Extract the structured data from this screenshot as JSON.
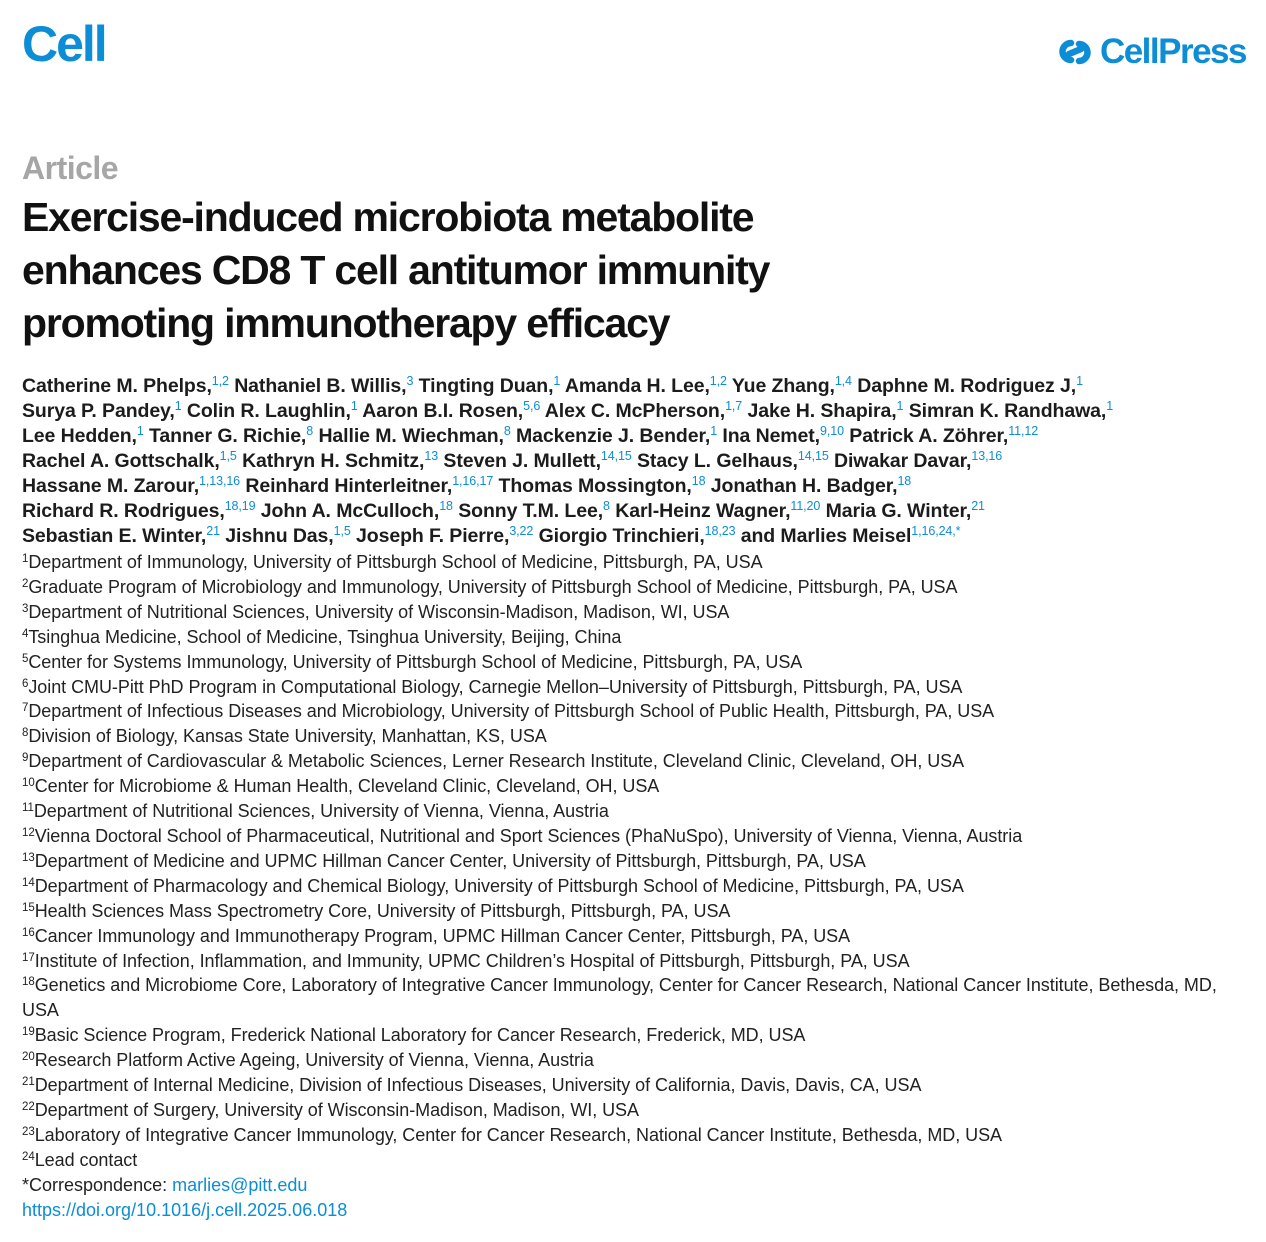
{
  "header": {
    "journal": "Cell",
    "publisher": "CellPress",
    "brand_color": "#0c8dd5"
  },
  "article_type": "Article",
  "title_lines": [
    "Exercise-induced microbiota metabolite",
    "enhances CD8 T cell antitumor immunity",
    "promoting immunotherapy efficacy"
  ],
  "author_lines": [
    [
      {
        "name": "Catherine M. Phelps,",
        "sup": "1,2"
      },
      {
        "name": "Nathaniel B. Willis,",
        "sup": "3"
      },
      {
        "name": "Tingting Duan,",
        "sup": "1"
      },
      {
        "name": "Amanda H. Lee,",
        "sup": "1,2"
      },
      {
        "name": "Yue Zhang,",
        "sup": "1,4"
      },
      {
        "name": "Daphne M. Rodriguez J,",
        "sup": "1"
      }
    ],
    [
      {
        "name": "Surya P. Pandey,",
        "sup": "1"
      },
      {
        "name": "Colin R. Laughlin,",
        "sup": "1"
      },
      {
        "name": "Aaron B.I. Rosen,",
        "sup": "5,6"
      },
      {
        "name": "Alex C. McPherson,",
        "sup": "1,7"
      },
      {
        "name": "Jake H. Shapira,",
        "sup": "1"
      },
      {
        "name": "Simran K. Randhawa,",
        "sup": "1"
      }
    ],
    [
      {
        "name": "Lee Hedden,",
        "sup": "1"
      },
      {
        "name": "Tanner G. Richie,",
        "sup": "8"
      },
      {
        "name": "Hallie M. Wiechman,",
        "sup": "8"
      },
      {
        "name": "Mackenzie J. Bender,",
        "sup": "1"
      },
      {
        "name": "Ina Nemet,",
        "sup": "9,10"
      },
      {
        "name": "Patrick A. Zöhrer,",
        "sup": "11,12"
      }
    ],
    [
      {
        "name": "Rachel A. Gottschalk,",
        "sup": "1,5"
      },
      {
        "name": "Kathryn H. Schmitz,",
        "sup": "13"
      },
      {
        "name": "Steven J. Mullett,",
        "sup": "14,15"
      },
      {
        "name": "Stacy L. Gelhaus,",
        "sup": "14,15"
      },
      {
        "name": "Diwakar Davar,",
        "sup": "13,16"
      }
    ],
    [
      {
        "name": "Hassane M. Zarour,",
        "sup": "1,13,16"
      },
      {
        "name": "Reinhard Hinterleitner,",
        "sup": "1,16,17"
      },
      {
        "name": "Thomas Mossington,",
        "sup": "18"
      },
      {
        "name": "Jonathan H. Badger,",
        "sup": "18"
      }
    ],
    [
      {
        "name": "Richard R. Rodrigues,",
        "sup": "18,19"
      },
      {
        "name": "John A. McCulloch,",
        "sup": "18"
      },
      {
        "name": "Sonny T.M. Lee,",
        "sup": "8"
      },
      {
        "name": "Karl-Heinz Wagner,",
        "sup": "11,20"
      },
      {
        "name": "Maria G. Winter,",
        "sup": "21"
      }
    ],
    [
      {
        "name": "Sebastian E. Winter,",
        "sup": "21"
      },
      {
        "name": "Jishnu Das,",
        "sup": "1,5"
      },
      {
        "name": "Joseph F. Pierre,",
        "sup": "3,22"
      },
      {
        "name": "Giorgio Trinchieri,",
        "sup": "18,23"
      },
      {
        "name": "and Marlies Meisel",
        "sup": "1,16,24,*"
      }
    ]
  ],
  "affiliations": [
    {
      "num": "1",
      "text": "Department of Immunology, University of Pittsburgh School of Medicine, Pittsburgh, PA, USA"
    },
    {
      "num": "2",
      "text": "Graduate Program of Microbiology and Immunology, University of Pittsburgh School of Medicine, Pittsburgh, PA, USA"
    },
    {
      "num": "3",
      "text": "Department of Nutritional Sciences, University of Wisconsin-Madison, Madison, WI, USA"
    },
    {
      "num": "4",
      "text": "Tsinghua Medicine, School of Medicine, Tsinghua University, Beijing, China"
    },
    {
      "num": "5",
      "text": "Center for Systems Immunology, University of Pittsburgh School of Medicine, Pittsburgh, PA, USA"
    },
    {
      "num": "6",
      "text": "Joint CMU-Pitt PhD Program in Computational Biology, Carnegie Mellon–University of Pittsburgh, Pittsburgh, PA, USA"
    },
    {
      "num": "7",
      "text": "Department of Infectious Diseases and Microbiology, University of Pittsburgh School of Public Health, Pittsburgh, PA, USA"
    },
    {
      "num": "8",
      "text": "Division of Biology, Kansas State University, Manhattan, KS, USA"
    },
    {
      "num": "9",
      "text": "Department of Cardiovascular & Metabolic Sciences, Lerner Research Institute, Cleveland Clinic, Cleveland, OH, USA"
    },
    {
      "num": "10",
      "text": "Center for Microbiome & Human Health, Cleveland Clinic, Cleveland, OH, USA"
    },
    {
      "num": "11",
      "text": "Department of Nutritional Sciences, University of Vienna, Vienna, Austria"
    },
    {
      "num": "12",
      "text": "Vienna Doctoral School of Pharmaceutical, Nutritional and Sport Sciences (PhaNuSpo), University of Vienna, Vienna, Austria"
    },
    {
      "num": "13",
      "text": "Department of Medicine and UPMC Hillman Cancer Center, University of Pittsburgh, Pittsburgh, PA, USA"
    },
    {
      "num": "14",
      "text": "Department of Pharmacology and Chemical Biology, University of Pittsburgh School of Medicine, Pittsburgh, PA, USA"
    },
    {
      "num": "15",
      "text": "Health Sciences Mass Spectrometry Core, University of Pittsburgh, Pittsburgh, PA, USA"
    },
    {
      "num": "16",
      "text": "Cancer Immunology and Immunotherapy Program, UPMC Hillman Cancer Center, Pittsburgh, PA, USA"
    },
    {
      "num": "17",
      "text": "Institute of Infection, Inflammation, and Immunity, UPMC Children’s Hospital of Pittsburgh, Pittsburgh, PA, USA"
    },
    {
      "num": "18",
      "text": "Genetics and Microbiome Core, Laboratory of Integrative Cancer Immunology, Center for Cancer Research, National Cancer Institute, Bethesda, MD, USA"
    },
    {
      "num": "19",
      "text": "Basic Science Program, Frederick National Laboratory for Cancer Research, Frederick, MD, USA"
    },
    {
      "num": "20",
      "text": "Research Platform Active Ageing, University of Vienna, Vienna, Austria"
    },
    {
      "num": "21",
      "text": "Department of Internal Medicine, Division of Infectious Diseases, University of California, Davis, Davis, CA, USA"
    },
    {
      "num": "22",
      "text": "Department of Surgery, University of Wisconsin-Madison, Madison, WI, USA"
    },
    {
      "num": "23",
      "text": "Laboratory of Integrative Cancer Immunology, Center for Cancer Research, National Cancer Institute, Bethesda, MD, USA"
    },
    {
      "num": "24",
      "text": "Lead contact"
    }
  ],
  "correspondence": {
    "label": "*Correspondence: ",
    "email": "marlies@pitt.edu"
  },
  "doi": "https://doi.org/10.1016/j.cell.2025.06.018"
}
